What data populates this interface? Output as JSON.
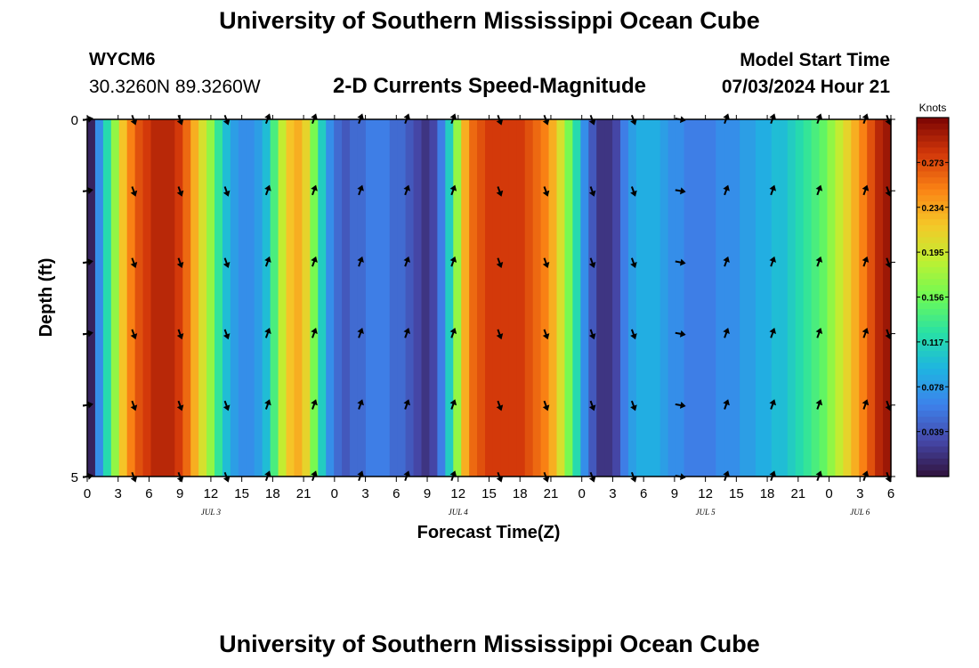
{
  "header": {
    "title": "University of Southern Mississippi Ocean Cube",
    "station_id": "WYCM6",
    "station_coords": "30.3260N  89.3260W",
    "subtitle": "2-D Currents Speed-Magnitude",
    "start_label": "Model Start Time",
    "start_value": "07/03/2024 Hour 21"
  },
  "footer": {
    "title": "University of Southern Mississippi Ocean Cube"
  },
  "chart_data": {
    "type": "heatmap",
    "title": "2-D Currents Speed-Magnitude",
    "xlabel": "Forecast Time(Z)",
    "ylabel": "Depth (ft)",
    "x_tick_labels": [
      "0",
      "3",
      "6",
      "9",
      "12",
      "15",
      "18",
      "21",
      "0",
      "3",
      "6",
      "9",
      "12",
      "15",
      "18",
      "21",
      "0",
      "3",
      "6",
      "9",
      "12",
      "15",
      "18",
      "21",
      "0",
      "3",
      "6"
    ],
    "x_hours_range": [
      0,
      78
    ],
    "date_labels": [
      {
        "text": "JUL 3",
        "hour": 12
      },
      {
        "text": "JUL 4",
        "hour": 36
      },
      {
        "text": "JUL 5",
        "hour": 60
      },
      {
        "text": "JUL 6",
        "hour": 75
      }
    ],
    "y_tick_labels": [
      "0",
      "5"
    ],
    "ylim": [
      0,
      5
    ],
    "depth_levels": [
      0,
      1,
      2,
      3,
      4,
      5
    ],
    "colorbar": {
      "label": "Knots",
      "ticks": [
        "0.273",
        "0.234",
        "0.195",
        "0.156",
        "0.117",
        "0.078",
        "0.039"
      ],
      "range": [
        0,
        0.312
      ]
    },
    "speed_knots": [
      0.01,
      0.07,
      0.12,
      0.17,
      0.22,
      0.25,
      0.27,
      0.28,
      0.29,
      0.29,
      0.29,
      0.28,
      0.26,
      0.23,
      0.2,
      0.17,
      0.13,
      0.1,
      0.08,
      0.07,
      0.07,
      0.08,
      0.1,
      0.14,
      0.19,
      0.22,
      0.23,
      0.21,
      0.16,
      0.11,
      0.07,
      0.05,
      0.04,
      0.05,
      0.05,
      0.06,
      0.06,
      0.06,
      0.05,
      0.05,
      0.04,
      0.03,
      0.02,
      0.03,
      0.06,
      0.11,
      0.17,
      0.23,
      0.26,
      0.27,
      0.28,
      0.28,
      0.28,
      0.28,
      0.28,
      0.27,
      0.26,
      0.25,
      0.23,
      0.2,
      0.16,
      0.12,
      0.07,
      0.04,
      0.02,
      0.02,
      0.03,
      0.06,
      0.08,
      0.09,
      0.09,
      0.09,
      0.08,
      0.07,
      0.07,
      0.06,
      0.06,
      0.06,
      0.06,
      0.07,
      0.07,
      0.07,
      0.08,
      0.08,
      0.09,
      0.09,
      0.1,
      0.1,
      0.11,
      0.12,
      0.13,
      0.14,
      0.15,
      0.17,
      0.19,
      0.21,
      0.23,
      0.25,
      0.27,
      0.29,
      0.3
    ],
    "arrows": {
      "hours": [
        0,
        4.5,
        9,
        13.5,
        17.5,
        22,
        26.5,
        31,
        35.5,
        40,
        44.5,
        49,
        53,
        57.5,
        62,
        66.5,
        71,
        75.5,
        80
      ],
      "directions_deg": [
        80,
        160,
        160,
        160,
        20,
        20,
        20,
        20,
        20,
        160,
        160,
        160,
        160,
        100,
        20,
        20,
        20,
        20,
        160
      ]
    }
  }
}
